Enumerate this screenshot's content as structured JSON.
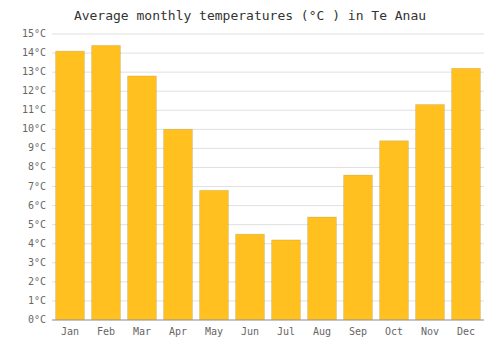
{
  "chart_data": {
    "type": "bar",
    "title": "Average monthly temperatures (°C ) in Te Anau",
    "categories": [
      "Jan",
      "Feb",
      "Mar",
      "Apr",
      "May",
      "Jun",
      "Jul",
      "Aug",
      "Sep",
      "Oct",
      "Nov",
      "Dec"
    ],
    "values": [
      14.1,
      14.4,
      12.8,
      10.0,
      6.8,
      4.5,
      4.2,
      5.4,
      7.6,
      9.4,
      11.3,
      13.2
    ],
    "color": "#FFC020",
    "ylim": [
      0,
      15
    ],
    "yticks": [
      {
        "value": 0,
        "label": "0°C"
      },
      {
        "value": 1,
        "label": "1°C"
      },
      {
        "value": 2,
        "label": "2°C"
      },
      {
        "value": 3,
        "label": "3°C"
      },
      {
        "value": 4,
        "label": "4°C"
      },
      {
        "value": 5,
        "label": "5°C"
      },
      {
        "value": 6,
        "label": "6°C"
      },
      {
        "value": 7,
        "label": "7°C"
      },
      {
        "value": 8,
        "label": "8°C"
      },
      {
        "value": 9,
        "label": "9°C"
      },
      {
        "value": 10,
        "label": "10°C"
      },
      {
        "value": 11,
        "label": "11°C"
      },
      {
        "value": 12,
        "label": "12°C"
      },
      {
        "value": 13,
        "label": "13°C"
      },
      {
        "value": 14,
        "label": "14°C"
      },
      {
        "value": 15,
        "label": "15°C"
      }
    ],
    "grid": true
  }
}
